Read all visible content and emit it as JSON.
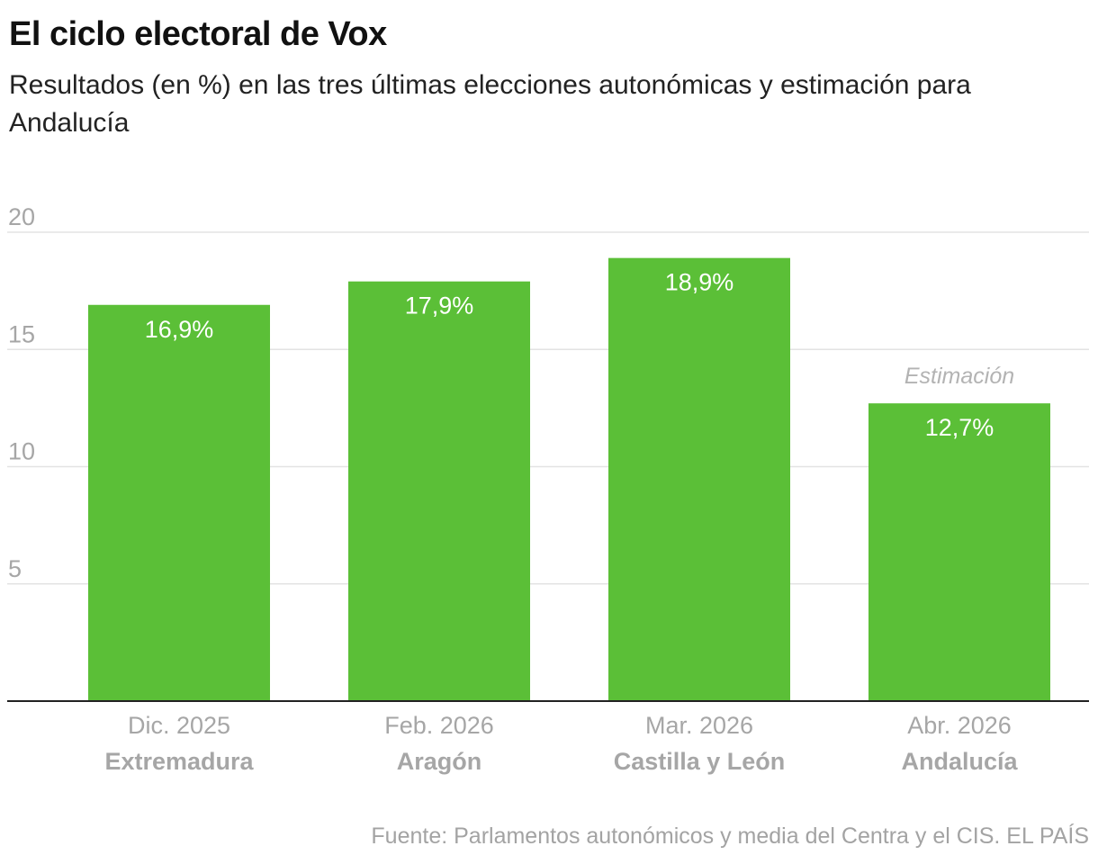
{
  "header": {
    "title": "El ciclo electoral de Vox",
    "subtitle": "Resultados (en %) en las tres últimas elecciones autonómicas y estimación para Andalucía"
  },
  "footer": {
    "source": "Fuente: Parlamentos autonómicos y media del Centra y el CIS. EL PAÍS"
  },
  "colors": {
    "bar": "#5bbf37",
    "grid": "#e3e3e3",
    "axis": "#222222",
    "tick_label": "#a6a6a6",
    "category_label": "#a6a6a6",
    "data_label": "#ffffff",
    "annotation": "#b3b3b3"
  },
  "chart_data": {
    "type": "bar",
    "categories": [
      "Extremadura",
      "Aragón",
      "Castilla y León",
      "Andalucía"
    ],
    "dates": [
      "Dic. 2025",
      "Feb. 2026",
      "Mar. 2026",
      "Abr. 2026"
    ],
    "values": [
      16.9,
      17.9,
      18.9,
      12.7
    ],
    "data_labels": [
      "16,9%",
      "17,9%",
      "18,9%",
      "12,7%"
    ],
    "annotations": [
      {
        "category": "Andalucía",
        "text": "Estimación"
      }
    ],
    "ylim": [
      0,
      20
    ],
    "yticks": [
      5,
      10,
      15,
      20
    ],
    "grid": true,
    "legend": "none"
  }
}
